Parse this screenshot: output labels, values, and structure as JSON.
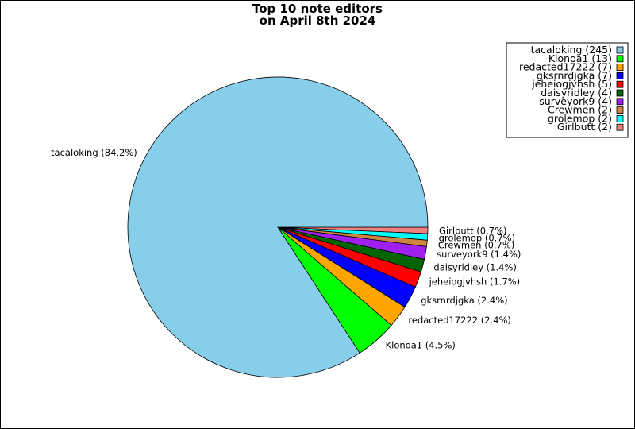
{
  "chart_data": {
    "type": "pie",
    "title": [
      "Top 10 note editors",
      "on April 8th 2024"
    ],
    "slices": [
      {
        "name": "tacaloking",
        "value": 245,
        "label": "tacaloking (84.2%)",
        "legend": "tacaloking (245)",
        "color": "#87ceeb"
      },
      {
        "name": "Klonoa1",
        "value": 13,
        "label": "Klonoa1 (4.5%)",
        "legend": "Klonoa1 (13)",
        "color": "#00ff00"
      },
      {
        "name": "redacted17222",
        "value": 7,
        "label": "redacted17222 (2.4%)",
        "legend": "redacted17222 (7)",
        "color": "#ffa500"
      },
      {
        "name": "gksrnrdjgka",
        "value": 7,
        "label": "gksrnrdjgka (2.4%)",
        "legend": "gksrnrdjgka (7)",
        "color": "#0000ff"
      },
      {
        "name": "jeheiogjvhsh",
        "value": 5,
        "label": "jeheiogjvhsh (1.7%)",
        "legend": "jeheiogjvhsh (5)",
        "color": "#ff0000"
      },
      {
        "name": "daisyridley",
        "value": 4,
        "label": "daisyridley (1.4%)",
        "legend": "daisyridley (4)",
        "color": "#006400"
      },
      {
        "name": "surveyork9",
        "value": 4,
        "label": "surveyork9 (1.4%)",
        "legend": "surveyork9 (4)",
        "color": "#a020f0"
      },
      {
        "name": "Crewmen",
        "value": 2,
        "label": "Crewmen (0.7%)",
        "legend": "Crewmen (2)",
        "color": "#cd853f"
      },
      {
        "name": "grolemop",
        "value": 2,
        "label": "grolemop (0.7%)",
        "legend": "grolemop (2)",
        "color": "#00ffff"
      },
      {
        "name": "Girlbutt",
        "value": 2,
        "label": "Girlbutt (0.7%)",
        "legend": "Girlbutt (2)",
        "color": "#f08080"
      }
    ],
    "start_angle_deg": 0,
    "direction": "clockwise",
    "legend_position": "top-right"
  }
}
